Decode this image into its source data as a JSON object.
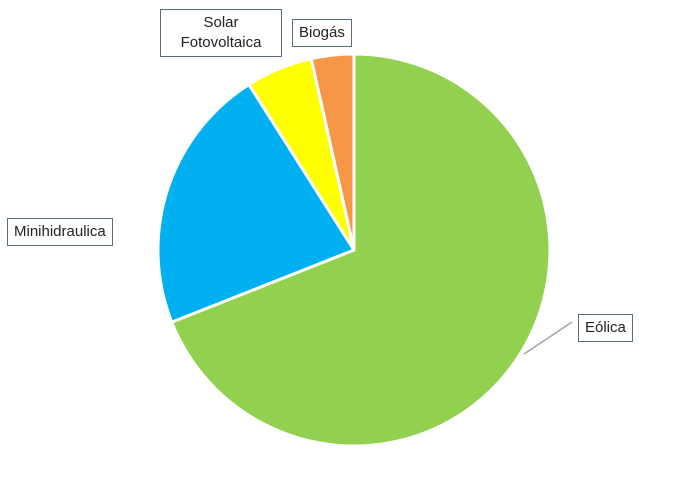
{
  "chart_data": {
    "type": "pie",
    "title": "",
    "legend": "none",
    "slices": [
      {
        "label": "Eólica",
        "value": 69,
        "color": "#92d050"
      },
      {
        "label": "Minihidraulica",
        "value": 22,
        "color": "#00b0f0"
      },
      {
        "label": "Solar Fotovoltaica",
        "value": 5.5,
        "color": "#ffff00"
      },
      {
        "label": "Biogás",
        "value": 3.5,
        "color": "#f79646"
      }
    ]
  }
}
